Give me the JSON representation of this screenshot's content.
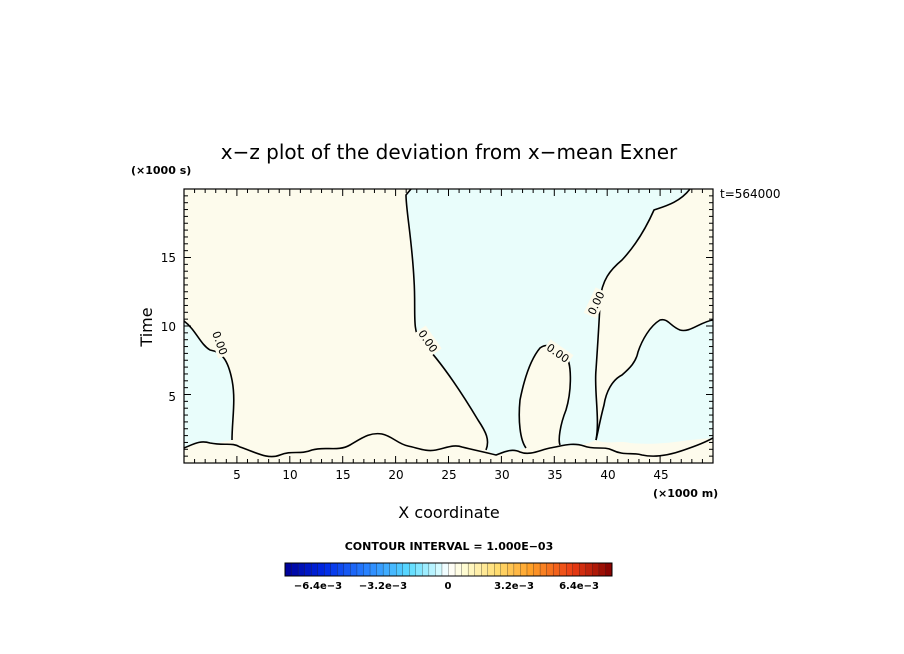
{
  "chart_data": {
    "type": "contour",
    "title": "x−z plot of the deviation from x−mean Exner",
    "xlabel": "X coordinate",
    "ylabel": "Time",
    "x_unit": "(×1000 m)",
    "y_unit": "(×1000 s)",
    "time_label": "t=564000",
    "xlim": [
      0,
      50
    ],
    "ylim": [
      0,
      20
    ],
    "x_ticks": [
      5,
      10,
      15,
      20,
      25,
      30,
      35,
      40,
      45
    ],
    "y_ticks": [
      5,
      10,
      15
    ],
    "contour_interval_text": "CONTOUR INTERVAL = 1.000E−03",
    "contour_labels": [
      "0.00",
      "0.00",
      "0.00",
      "0.00"
    ],
    "colorbar": {
      "tick_labels": [
        "−6.4e−3",
        "−3.2e−3",
        "0",
        "3.2e−3",
        "6.4e−3"
      ],
      "tick_values": [
        -0.0064,
        -0.0032,
        0,
        0.0032,
        0.0064
      ],
      "range": [
        -0.008,
        0.008
      ]
    },
    "field_colors": {
      "positive": "#fdfbec",
      "negative": "#e9fdfb"
    }
  }
}
